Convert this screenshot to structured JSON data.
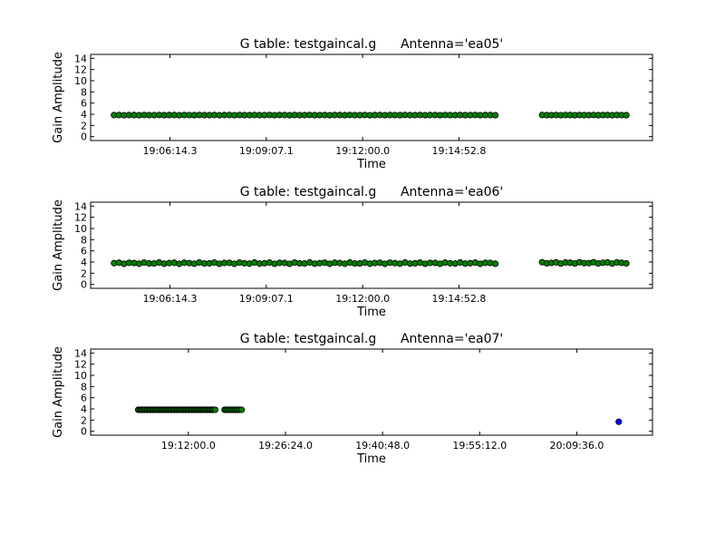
{
  "chart_data": [
    {
      "type": "scatter",
      "title": "G table: testgaincal.g      Antenna='ea05'",
      "xlabel": "Time",
      "ylabel": "Gain Amplitude",
      "yticks": [
        "0",
        "2",
        "4",
        "6",
        "8",
        "10",
        "12",
        "14"
      ],
      "ylim": [
        0,
        14
      ],
      "xticks": [
        "19:06:14.3",
        "19:09:07.1",
        "19:12:00.0",
        "19:14:52.8"
      ],
      "xtick_seconds": [
        68774.3,
        68947.1,
        69120.0,
        69292.8
      ],
      "xlim_seconds": [
        68632,
        69640
      ],
      "grid": false,
      "series": [
        {
          "color": "#008000",
          "x_range_seconds": [
            68674,
            69358
          ],
          "count": 77,
          "y": 3.85,
          "jitter": 0.02
        },
        {
          "color": "#008000",
          "x_range_seconds": [
            69442,
            69593
          ],
          "count": 19,
          "y": 3.85,
          "jitter": 0.02
        }
      ]
    },
    {
      "type": "scatter",
      "title": "G table: testgaincal.g      Antenna='ea06'",
      "xlabel": "Time",
      "ylabel": "Gain Amplitude",
      "yticks": [
        "0",
        "2",
        "4",
        "6",
        "8",
        "10",
        "12",
        "14"
      ],
      "ylim": [
        0,
        14
      ],
      "xticks": [
        "19:06:14.3",
        "19:09:07.1",
        "19:12:00.0",
        "19:14:52.8"
      ],
      "xtick_seconds": [
        68774.3,
        68947.1,
        69120.0,
        69292.8
      ],
      "xlim_seconds": [
        68632,
        69640
      ],
      "grid": false,
      "series": [
        {
          "color": "#008000",
          "x_range_seconds": [
            68674,
            69358
          ],
          "count": 77,
          "y": 3.8,
          "jitter": 0.12
        },
        {
          "color": "#008000",
          "x_range_seconds": [
            69442,
            69593
          ],
          "count": 19,
          "y": 3.85,
          "jitter": 0.12
        }
      ]
    },
    {
      "type": "scatter",
      "title": "G table: testgaincal.g      Antenna='ea07'",
      "xlabel": "Time",
      "ylabel": "Gain Amplitude",
      "yticks": [
        "0",
        "2",
        "4",
        "6",
        "8",
        "10",
        "12",
        "14"
      ],
      "ylim": [
        0,
        14
      ],
      "xticks": [
        "19:12:00.0",
        "19:26:24.0",
        "19:40:48.0",
        "19:55:12.0",
        "20:09:36.0"
      ],
      "xtick_seconds": [
        69120,
        69984,
        70848,
        71712,
        72576
      ],
      "xlim_seconds": [
        68250,
        73250
      ],
      "grid": false,
      "series": [
        {
          "color": "#008000",
          "x_range_seconds": [
            68674,
            69358
          ],
          "count": 60,
          "y": 3.85,
          "jitter": 0.0
        },
        {
          "color": "#008000",
          "x_range_seconds": [
            69442,
            69593
          ],
          "count": 12,
          "y": 3.85,
          "jitter": 0.0
        },
        {
          "color": "#0000ff",
          "points": [
            [
              72950,
              1.7
            ]
          ]
        }
      ]
    }
  ]
}
